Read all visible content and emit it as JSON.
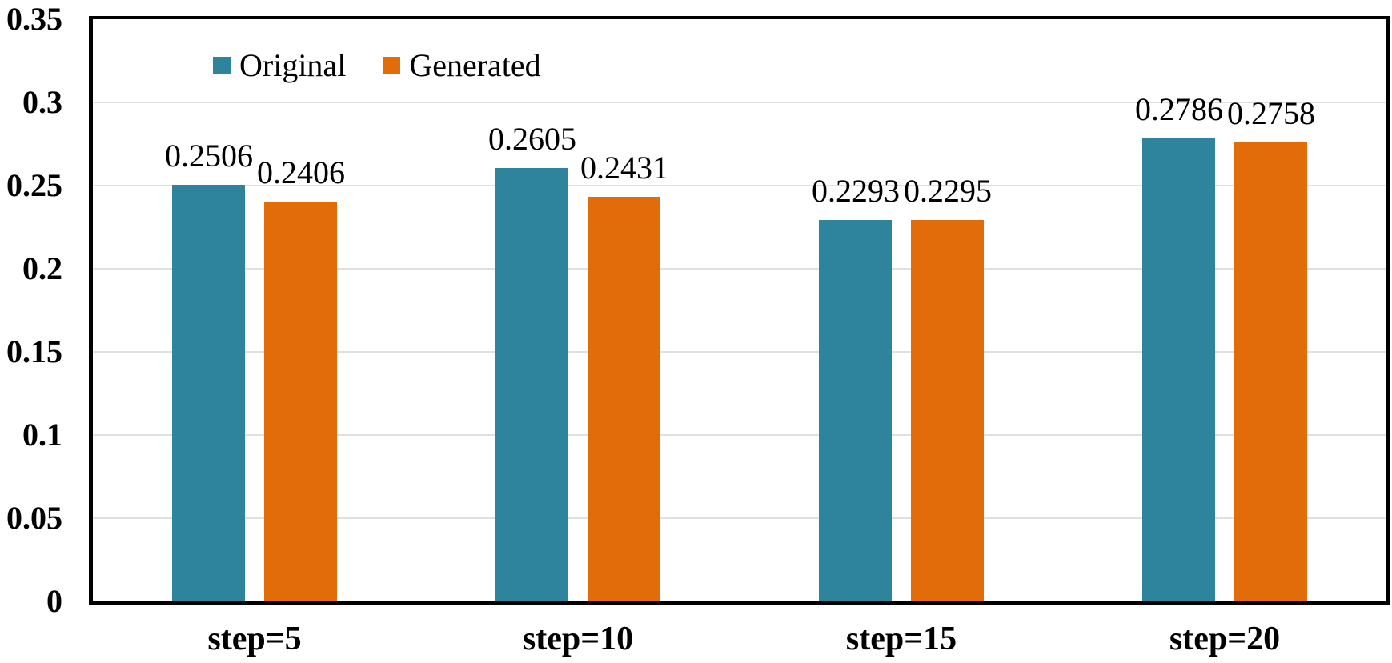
{
  "chart_data": {
    "type": "bar",
    "title": "",
    "xlabel": "",
    "ylabel": "",
    "categories": [
      "step=5",
      "step=10",
      "step=15",
      "step=20"
    ],
    "series": [
      {
        "name": "Original",
        "color": "#2E849C",
        "values": [
          0.2506,
          0.2605,
          0.2293,
          0.2786
        ]
      },
      {
        "name": "Generated",
        "color": "#E36C0A",
        "values": [
          0.2406,
          0.2431,
          0.2295,
          0.2758
        ]
      }
    ],
    "value_labels": [
      [
        "0.2506",
        "0.2605",
        "0.2293",
        "0.2786"
      ],
      [
        "0.2406",
        "0.2431",
        "0.2295",
        "0.2758"
      ]
    ],
    "ylim": [
      0,
      0.35
    ],
    "yticks": [
      {
        "value": 0,
        "label": "0"
      },
      {
        "value": 0.05,
        "label": "0.05"
      },
      {
        "value": 0.1,
        "label": "0.1"
      },
      {
        "value": 0.15,
        "label": "0.15"
      },
      {
        "value": 0.2,
        "label": "0.2"
      },
      {
        "value": 0.25,
        "label": "0.25"
      },
      {
        "value": 0.3,
        "label": "0.3"
      },
      {
        "value": 0.35,
        "label": "0.35"
      }
    ],
    "grid": "horizontal",
    "gridline_color": "#E0E0E0",
    "axis_color": "#000000",
    "text_color": "#000000",
    "background_color": "#FFFFFF",
    "legend_position": "top-left-inside"
  }
}
